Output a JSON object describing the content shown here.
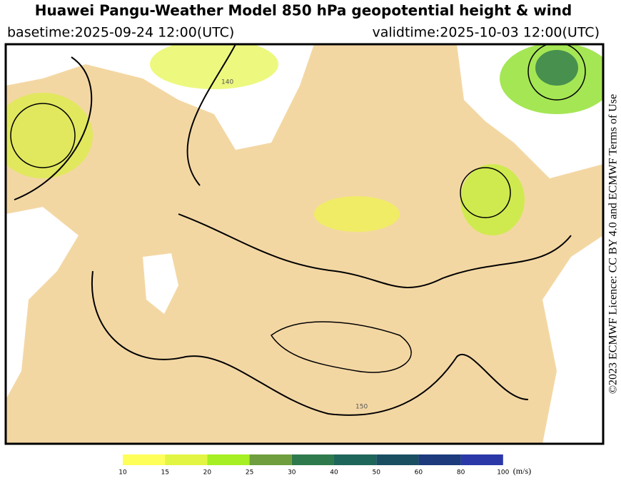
{
  "header": {
    "title": "Huawei Pangu-Weather Model 850 hPa geopotential height & wind",
    "basetime": "basetime:2025-09-24 12:00(UTC)",
    "validtime": "validtime:2025-10-03 12:00(UTC)"
  },
  "licence": "©2023 ECMWF Licence: CC BY 4.0 and ECMWF Terms of Use",
  "map_labels": [
    "140",
    "150"
  ],
  "colorbar": {
    "ticks": [
      10,
      15,
      20,
      25,
      30,
      40,
      50,
      60,
      80,
      100
    ],
    "colors": [
      "#ffff5a",
      "#e2f542",
      "#a6ef22",
      "#6e9e3e",
      "#2f7a4c",
      "#1f665a",
      "#1a4f62",
      "#1c3a7c",
      "#2a38a8"
    ],
    "unit": "(m/s)"
  }
}
